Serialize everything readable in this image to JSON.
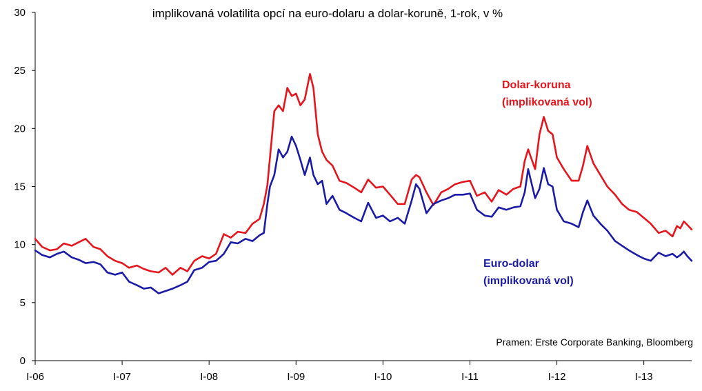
{
  "chart_data": {
    "type": "line",
    "title": "implikovaná volatilita opcí na euro-dolaru a dolar-koruně, 1-rok, v %",
    "source": "Pramen: Erste Corporate Banking, Bloomberg",
    "xlabel": "",
    "ylabel": "",
    "ylim": [
      0,
      30
    ],
    "yticks": [
      "0",
      "5",
      "10",
      "15",
      "20",
      "25",
      "30"
    ],
    "xlim": [
      2006.0,
      2013.55
    ],
    "xticks": [
      {
        "x": 2006,
        "label": "I-06"
      },
      {
        "x": 2007,
        "label": "I-07"
      },
      {
        "x": 2008,
        "label": "I-08"
      },
      {
        "x": 2009,
        "label": "I-09"
      },
      {
        "x": 2010,
        "label": "I-10"
      },
      {
        "x": 2011,
        "label": "I-11"
      },
      {
        "x": 2012,
        "label": "I-12"
      },
      {
        "x": 2013,
        "label": "I-13"
      }
    ],
    "grid": false,
    "series": [
      {
        "name": "Dolar-koruna (implikovaná vol)",
        "label_lines": [
          "Dolar-koruna",
          "(implikovaná vol)"
        ],
        "color": "#e8141c",
        "points": [
          [
            2006.0,
            10.5
          ],
          [
            2006.08,
            9.8
          ],
          [
            2006.17,
            9.5
          ],
          [
            2006.25,
            9.6
          ],
          [
            2006.33,
            10.1
          ],
          [
            2006.42,
            9.9
          ],
          [
            2006.5,
            10.2
          ],
          [
            2006.58,
            10.5
          ],
          [
            2006.67,
            9.8
          ],
          [
            2006.75,
            9.6
          ],
          [
            2006.83,
            9.0
          ],
          [
            2006.92,
            8.6
          ],
          [
            2007.0,
            8.4
          ],
          [
            2007.08,
            8.0
          ],
          [
            2007.17,
            8.2
          ],
          [
            2007.25,
            7.9
          ],
          [
            2007.33,
            7.7
          ],
          [
            2007.42,
            7.6
          ],
          [
            2007.5,
            8.0
          ],
          [
            2007.58,
            7.4
          ],
          [
            2007.67,
            8.0
          ],
          [
            2007.75,
            7.7
          ],
          [
            2007.83,
            8.6
          ],
          [
            2007.92,
            9.0
          ],
          [
            2008.0,
            8.8
          ],
          [
            2008.08,
            9.2
          ],
          [
            2008.17,
            10.9
          ],
          [
            2008.25,
            10.6
          ],
          [
            2008.33,
            11.1
          ],
          [
            2008.42,
            11.0
          ],
          [
            2008.5,
            11.8
          ],
          [
            2008.58,
            12.2
          ],
          [
            2008.63,
            13.5
          ],
          [
            2008.67,
            15.1
          ],
          [
            2008.7,
            17.5
          ],
          [
            2008.75,
            21.5
          ],
          [
            2008.8,
            22.0
          ],
          [
            2008.85,
            21.5
          ],
          [
            2008.9,
            23.5
          ],
          [
            2008.95,
            22.8
          ],
          [
            2009.0,
            23.0
          ],
          [
            2009.05,
            22.0
          ],
          [
            2009.1,
            22.5
          ],
          [
            2009.16,
            24.7
          ],
          [
            2009.2,
            23.5
          ],
          [
            2009.25,
            19.5
          ],
          [
            2009.3,
            18.0
          ],
          [
            2009.35,
            17.3
          ],
          [
            2009.42,
            16.8
          ],
          [
            2009.5,
            15.5
          ],
          [
            2009.58,
            15.3
          ],
          [
            2009.67,
            14.9
          ],
          [
            2009.75,
            14.5
          ],
          [
            2009.83,
            15.6
          ],
          [
            2009.92,
            14.9
          ],
          [
            2010.0,
            15.0
          ],
          [
            2010.08,
            14.3
          ],
          [
            2010.17,
            13.5
          ],
          [
            2010.25,
            13.5
          ],
          [
            2010.33,
            15.6
          ],
          [
            2010.38,
            16.0
          ],
          [
            2010.42,
            15.8
          ],
          [
            2010.5,
            14.5
          ],
          [
            2010.58,
            13.4
          ],
          [
            2010.67,
            14.5
          ],
          [
            2010.75,
            14.8
          ],
          [
            2010.83,
            15.2
          ],
          [
            2010.92,
            15.4
          ],
          [
            2011.0,
            15.5
          ],
          [
            2011.08,
            14.2
          ],
          [
            2011.17,
            14.5
          ],
          [
            2011.25,
            13.7
          ],
          [
            2011.33,
            14.7
          ],
          [
            2011.42,
            14.3
          ],
          [
            2011.5,
            14.8
          ],
          [
            2011.58,
            15.0
          ],
          [
            2011.63,
            17.2
          ],
          [
            2011.67,
            18.2
          ],
          [
            2011.75,
            16.5
          ],
          [
            2011.8,
            19.5
          ],
          [
            2011.85,
            21.0
          ],
          [
            2011.9,
            19.8
          ],
          [
            2011.95,
            19.5
          ],
          [
            2012.0,
            17.5
          ],
          [
            2012.08,
            16.5
          ],
          [
            2012.17,
            15.5
          ],
          [
            2012.25,
            15.5
          ],
          [
            2012.3,
            16.8
          ],
          [
            2012.35,
            18.5
          ],
          [
            2012.42,
            17.0
          ],
          [
            2012.5,
            16.0
          ],
          [
            2012.58,
            15.0
          ],
          [
            2012.67,
            14.3
          ],
          [
            2012.75,
            13.5
          ],
          [
            2012.83,
            13.0
          ],
          [
            2012.92,
            12.8
          ],
          [
            2013.0,
            12.3
          ],
          [
            2013.08,
            11.8
          ],
          [
            2013.17,
            11.0
          ],
          [
            2013.25,
            11.2
          ],
          [
            2013.33,
            10.7
          ],
          [
            2013.38,
            11.6
          ],
          [
            2013.42,
            11.4
          ],
          [
            2013.46,
            12.0
          ],
          [
            2013.5,
            11.7
          ],
          [
            2013.55,
            11.3
          ]
        ]
      },
      {
        "name": "Euro-dolar (implikovaná vol)",
        "label_lines": [
          "Euro-dolar",
          "(implikovaná vol)"
        ],
        "color": "#1a1aa8",
        "points": [
          [
            2006.0,
            9.5
          ],
          [
            2006.08,
            9.1
          ],
          [
            2006.17,
            8.9
          ],
          [
            2006.25,
            9.2
          ],
          [
            2006.33,
            9.4
          ],
          [
            2006.42,
            8.9
          ],
          [
            2006.5,
            8.7
          ],
          [
            2006.58,
            8.4
          ],
          [
            2006.67,
            8.5
          ],
          [
            2006.75,
            8.3
          ],
          [
            2006.83,
            7.6
          ],
          [
            2006.92,
            7.4
          ],
          [
            2007.0,
            7.6
          ],
          [
            2007.08,
            6.8
          ],
          [
            2007.17,
            6.5
          ],
          [
            2007.25,
            6.2
          ],
          [
            2007.33,
            6.3
          ],
          [
            2007.42,
            5.8
          ],
          [
            2007.5,
            6.0
          ],
          [
            2007.58,
            6.2
          ],
          [
            2007.67,
            6.5
          ],
          [
            2007.75,
            6.8
          ],
          [
            2007.83,
            7.8
          ],
          [
            2007.92,
            8.0
          ],
          [
            2008.0,
            8.5
          ],
          [
            2008.08,
            8.6
          ],
          [
            2008.17,
            9.2
          ],
          [
            2008.25,
            10.2
          ],
          [
            2008.33,
            10.1
          ],
          [
            2008.42,
            10.5
          ],
          [
            2008.5,
            10.3
          ],
          [
            2008.58,
            10.8
          ],
          [
            2008.63,
            11.0
          ],
          [
            2008.67,
            13.5
          ],
          [
            2008.7,
            15.0
          ],
          [
            2008.75,
            16.0
          ],
          [
            2008.8,
            18.2
          ],
          [
            2008.85,
            17.5
          ],
          [
            2008.9,
            18.0
          ],
          [
            2008.95,
            19.3
          ],
          [
            2009.0,
            18.5
          ],
          [
            2009.05,
            17.3
          ],
          [
            2009.1,
            16.0
          ],
          [
            2009.16,
            17.5
          ],
          [
            2009.2,
            16.0
          ],
          [
            2009.25,
            15.2
          ],
          [
            2009.3,
            15.5
          ],
          [
            2009.35,
            13.5
          ],
          [
            2009.42,
            14.2
          ],
          [
            2009.5,
            13.0
          ],
          [
            2009.58,
            12.7
          ],
          [
            2009.67,
            12.3
          ],
          [
            2009.75,
            12.0
          ],
          [
            2009.83,
            13.6
          ],
          [
            2009.92,
            12.3
          ],
          [
            2010.0,
            12.5
          ],
          [
            2010.08,
            12.0
          ],
          [
            2010.17,
            12.3
          ],
          [
            2010.25,
            11.8
          ],
          [
            2010.33,
            13.8
          ],
          [
            2010.38,
            15.2
          ],
          [
            2010.42,
            14.8
          ],
          [
            2010.5,
            12.7
          ],
          [
            2010.58,
            13.5
          ],
          [
            2010.67,
            13.8
          ],
          [
            2010.75,
            14.0
          ],
          [
            2010.83,
            14.3
          ],
          [
            2010.92,
            14.3
          ],
          [
            2011.0,
            14.4
          ],
          [
            2011.08,
            13.0
          ],
          [
            2011.17,
            12.5
          ],
          [
            2011.25,
            12.4
          ],
          [
            2011.33,
            13.2
          ],
          [
            2011.42,
            13.0
          ],
          [
            2011.5,
            13.2
          ],
          [
            2011.58,
            13.3
          ],
          [
            2011.63,
            14.5
          ],
          [
            2011.67,
            16.5
          ],
          [
            2011.75,
            14.0
          ],
          [
            2011.8,
            14.8
          ],
          [
            2011.85,
            16.6
          ],
          [
            2011.9,
            15.2
          ],
          [
            2011.95,
            15.0
          ],
          [
            2012.0,
            13.0
          ],
          [
            2012.08,
            12.0
          ],
          [
            2012.17,
            11.8
          ],
          [
            2012.25,
            11.5
          ],
          [
            2012.3,
            12.8
          ],
          [
            2012.35,
            13.8
          ],
          [
            2012.42,
            12.5
          ],
          [
            2012.5,
            11.8
          ],
          [
            2012.58,
            11.2
          ],
          [
            2012.67,
            10.3
          ],
          [
            2012.75,
            9.9
          ],
          [
            2012.83,
            9.5
          ],
          [
            2012.92,
            9.1
          ],
          [
            2013.0,
            8.8
          ],
          [
            2013.08,
            8.6
          ],
          [
            2013.17,
            9.3
          ],
          [
            2013.25,
            9.0
          ],
          [
            2013.33,
            9.2
          ],
          [
            2013.38,
            8.9
          ],
          [
            2013.42,
            9.1
          ],
          [
            2013.46,
            9.4
          ],
          [
            2013.5,
            9.0
          ],
          [
            2013.55,
            8.6
          ]
        ]
      }
    ]
  }
}
